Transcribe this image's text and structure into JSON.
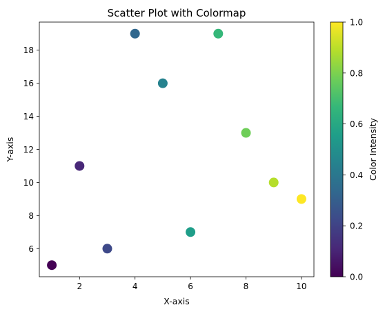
{
  "chart_data": {
    "type": "scatter",
    "title": "Scatter Plot with Colormap",
    "xlabel": "X-axis",
    "ylabel": "Y-axis",
    "xlim": [
      0.55,
      10.45
    ],
    "ylim": [
      4.3,
      19.7
    ],
    "xticks": [
      2,
      4,
      6,
      8,
      10
    ],
    "yticks": [
      6,
      8,
      10,
      12,
      14,
      16,
      18
    ],
    "grid": false,
    "colormap": "viridis",
    "colorbar": {
      "label": "Color Intensity",
      "range": [
        0.0,
        1.0
      ],
      "ticks": [
        "0.0",
        "0.2",
        "0.4",
        "0.6",
        "0.8",
        "1.0"
      ]
    },
    "points": [
      {
        "x": 1,
        "y": 5,
        "c": 0.0
      },
      {
        "x": 2,
        "y": 11,
        "c": 0.111
      },
      {
        "x": 3,
        "y": 6,
        "c": 0.222
      },
      {
        "x": 4,
        "y": 19,
        "c": 0.333
      },
      {
        "x": 5,
        "y": 16,
        "c": 0.444
      },
      {
        "x": 6,
        "y": 7,
        "c": 0.556
      },
      {
        "x": 7,
        "y": 19,
        "c": 0.667
      },
      {
        "x": 8,
        "y": 13,
        "c": 0.778
      },
      {
        "x": 9,
        "y": 10,
        "c": 0.889
      },
      {
        "x": 10,
        "y": 9,
        "c": 1.0
      }
    ]
  },
  "colors": {
    "viridis": [
      "#440154",
      "#482878",
      "#3e4989",
      "#31688e",
      "#26828e",
      "#1f9e89",
      "#35b779",
      "#6ece58",
      "#b5de2b",
      "#fde725"
    ]
  }
}
